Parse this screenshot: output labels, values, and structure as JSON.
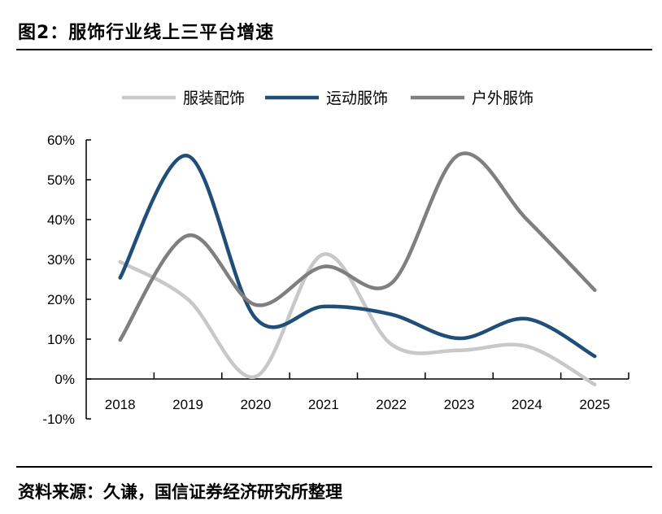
{
  "title": "图2：服饰行业线上三平台增速",
  "source": "资料来源：久谦，国信证券经济研究所整理",
  "chart_data": {
    "type": "line",
    "title": "",
    "xlabel": "",
    "ylabel": "",
    "categories": [
      "2018",
      "2019",
      "2020",
      "2021",
      "2022",
      "2023",
      "2024",
      "2025"
    ],
    "ylim": [
      -0.1,
      0.6
    ],
    "yticks": [
      -0.1,
      0,
      0.1,
      0.2,
      0.3,
      0.4,
      0.5,
      0.6
    ],
    "ytick_labels": [
      "-10%",
      "0%",
      "10%",
      "20%",
      "30%",
      "40%",
      "50%",
      "60%"
    ],
    "grid": false,
    "smooth": true,
    "legend": "top",
    "series": [
      {
        "name": "服装配饰",
        "color": "#c8c8c8",
        "values": [
          0.294,
          0.2,
          0.006,
          0.313,
          0.087,
          0.072,
          0.082,
          -0.014
        ]
      },
      {
        "name": "运动服饰",
        "color": "#1f4e79",
        "values": [
          0.254,
          0.56,
          0.152,
          0.182,
          0.162,
          0.102,
          0.151,
          0.057
        ]
      },
      {
        "name": "户外服饰",
        "color": "#7f7f7f",
        "values": [
          0.098,
          0.36,
          0.186,
          0.282,
          0.24,
          0.563,
          0.4,
          0.223
        ]
      }
    ]
  }
}
